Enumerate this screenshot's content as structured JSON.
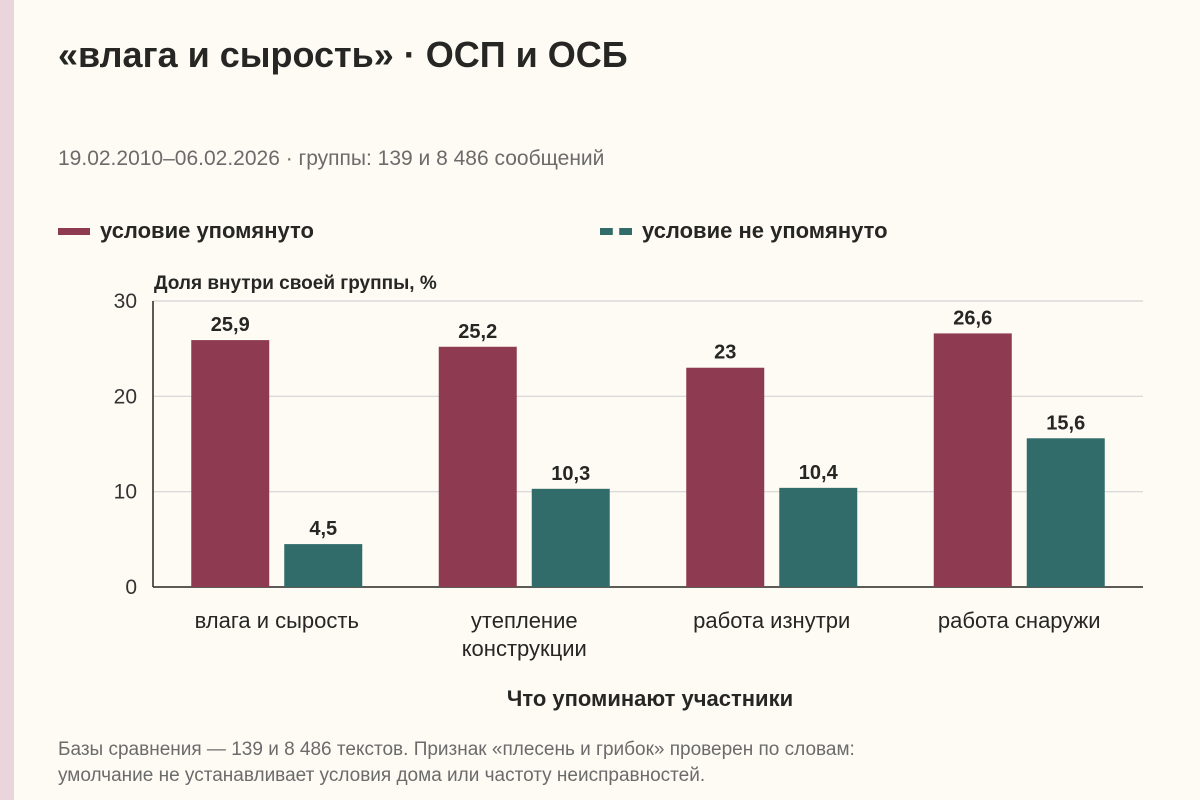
{
  "title": "«влага и сырость» · ОСП и ОСБ",
  "subtitle": "19.02.2010–06.02.2026 · группы: 139 и 8 486 сообщений",
  "footnote_line1": "Базы сравнения — 139 и 8 486 текстов. Признак «плесень и грибок» проверен по словам:",
  "footnote_line2": "умолчание не устанавливает условия дома или частоту неисправностей.",
  "colors": {
    "background": "#fdfbf3",
    "series_0": "#8e3b52",
    "series_1": "#326c6a",
    "grid": "#d4d4d4",
    "axis": "#262624"
  },
  "chart_data": {
    "type": "bar",
    "ylabel": "Доля внутри своей группы, %",
    "xlabel": "Что упоминают участники",
    "ylim": [
      0,
      30
    ],
    "yticks": [
      0,
      10,
      20,
      30
    ],
    "grid": true,
    "legend_position": "top",
    "categories": [
      "влага и сырость",
      "утепление конструкции",
      "работа изнутри",
      "работа снаружи"
    ],
    "category_lines": [
      [
        "влага и сырость"
      ],
      [
        "утепление",
        "конструкции"
      ],
      [
        "работа изнутри"
      ],
      [
        "работа снаружи"
      ]
    ],
    "series": [
      {
        "name": "условие упомянуто",
        "values": [
          25.9,
          25.2,
          23,
          26.6
        ],
        "labels": [
          "25,9",
          "25,2",
          "23",
          "26,6"
        ]
      },
      {
        "name": "условие не упомянуто",
        "values": [
          4.5,
          10.3,
          10.4,
          15.6
        ],
        "labels": [
          "4,5",
          "10,3",
          "10,4",
          "15,6"
        ]
      }
    ]
  }
}
